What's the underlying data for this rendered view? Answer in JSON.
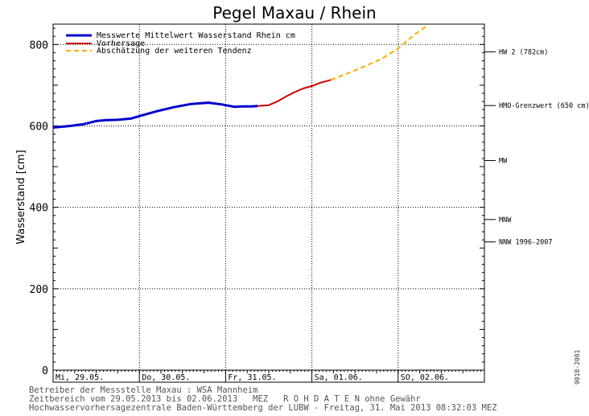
{
  "title": "Pegel Maxau / Rhein",
  "footer": {
    "line1": "Betreiber der Messstelle Maxau : WSA Mannheim",
    "line2": "Zeitbereich vom 29.05.2013 bis 02.06.2013   MEZ   R O H D A T E N ohne Gewähr",
    "line3": "Hochwasservorhersagezentrale Baden-Württemberg der LUBW - Freitag, 31. Mai 2013 08:32:03 MEZ"
  },
  "side_code": "9018-2001",
  "colors": {
    "measured": "#0000cc",
    "forecast": "#cc0000",
    "trend": "#ffaa00",
    "grid": "#000000"
  },
  "chart_data": {
    "type": "line",
    "title": "Pegel Maxau / Rhein",
    "xlabel": "",
    "ylabel": "Wasserstand [cm]",
    "ylim": [
      0,
      850
    ],
    "xlim": [
      0,
      5
    ],
    "yticks": [
      0,
      200,
      400,
      600,
      800
    ],
    "x_tick_labels": [
      "Mi, 29.05.",
      "Do, 30.05.",
      "Fr, 31.05.",
      "Sa, 01.06.",
      "SO, 02.06."
    ],
    "legend_position": "top-left",
    "grid": true,
    "series": [
      {
        "name": "Messwerte Mittelwert Wasserstand Rhein cm",
        "style": "solid",
        "x": [
          0,
          0.2,
          0.35,
          0.5,
          0.6,
          0.75,
          0.9,
          1.0,
          1.2,
          1.4,
          1.6,
          1.8,
          1.95,
          2.1,
          2.2,
          2.3,
          2.37
        ],
        "y": [
          596,
          600,
          604,
          612,
          614,
          615,
          618,
          624,
          636,
          646,
          654,
          657,
          653,
          647,
          648,
          648,
          649
        ]
      },
      {
        "name": "Vorhersage",
        "style": "solid",
        "x": [
          2.37,
          2.5,
          2.6,
          2.7,
          2.8,
          2.9,
          3.0,
          3.1,
          3.22
        ],
        "y": [
          649,
          651,
          660,
          672,
          683,
          692,
          698,
          706,
          713
        ]
      },
      {
        "name": "Abschätzung der weiteren Tendenz",
        "style": "dashed",
        "x": [
          3.22,
          3.4,
          3.6,
          3.8,
          4.0,
          4.1,
          4.2,
          4.35
        ],
        "y": [
          713,
          728,
          745,
          764,
          790,
          808,
          826,
          848
        ]
      }
    ],
    "reference_lines": [
      {
        "label": "HW 2 (782cm)",
        "value": 782
      },
      {
        "label": "HMO-Grenzwert (650 cm)",
        "value": 650
      },
      {
        "label": "MW",
        "value": 515
      },
      {
        "label": "MNW",
        "value": 370
      },
      {
        "label": "NNW 1996-2007",
        "value": 315
      }
    ]
  }
}
